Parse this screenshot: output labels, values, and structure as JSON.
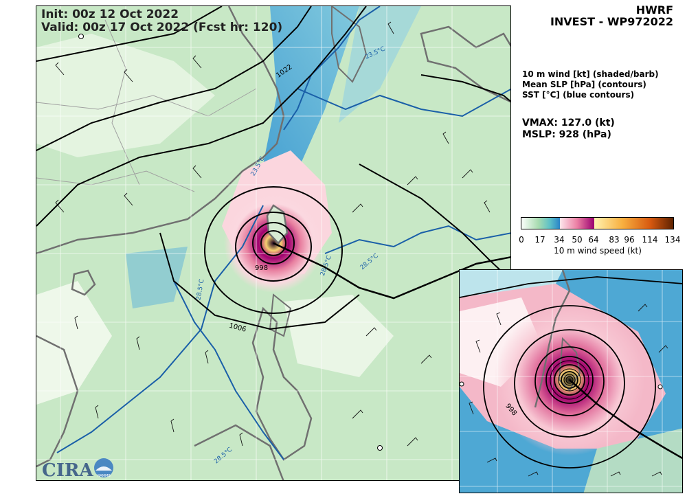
{
  "title": {
    "init": "Init:   00z 12 Oct 2022",
    "valid": "Valid: 00z 17 Oct 2022 (Fcst hr: 120)"
  },
  "header": {
    "model": "HWRF",
    "storm": "INVEST - WP972022"
  },
  "fields": [
    "10 m wind [kt] (shaded/barb)",
    "Mean SLP [hPa] (contours)",
    "SST [°C] (blue contours)"
  ],
  "stats": {
    "vmax": "VMAX: 127.0 (kt)",
    "mslp": "MSLP:  928 (hPa)"
  },
  "colorbar": {
    "ticks": [
      "0",
      "17",
      "34",
      "50",
      "64",
      "83",
      "96",
      "114",
      "134"
    ],
    "label": "10 m wind speed (kt)"
  },
  "contour_labels": {
    "slp": [
      "1022",
      "998",
      "1006"
    ],
    "inset_slp": [
      "998"
    ],
    "sst": [
      "23.5°C",
      "23.5°C",
      "28.5°C",
      "28.5°C",
      "28.5°C",
      "28.5°C"
    ]
  },
  "logo": {
    "text": "CIRA",
    "sub": "RAMMB"
  }
}
